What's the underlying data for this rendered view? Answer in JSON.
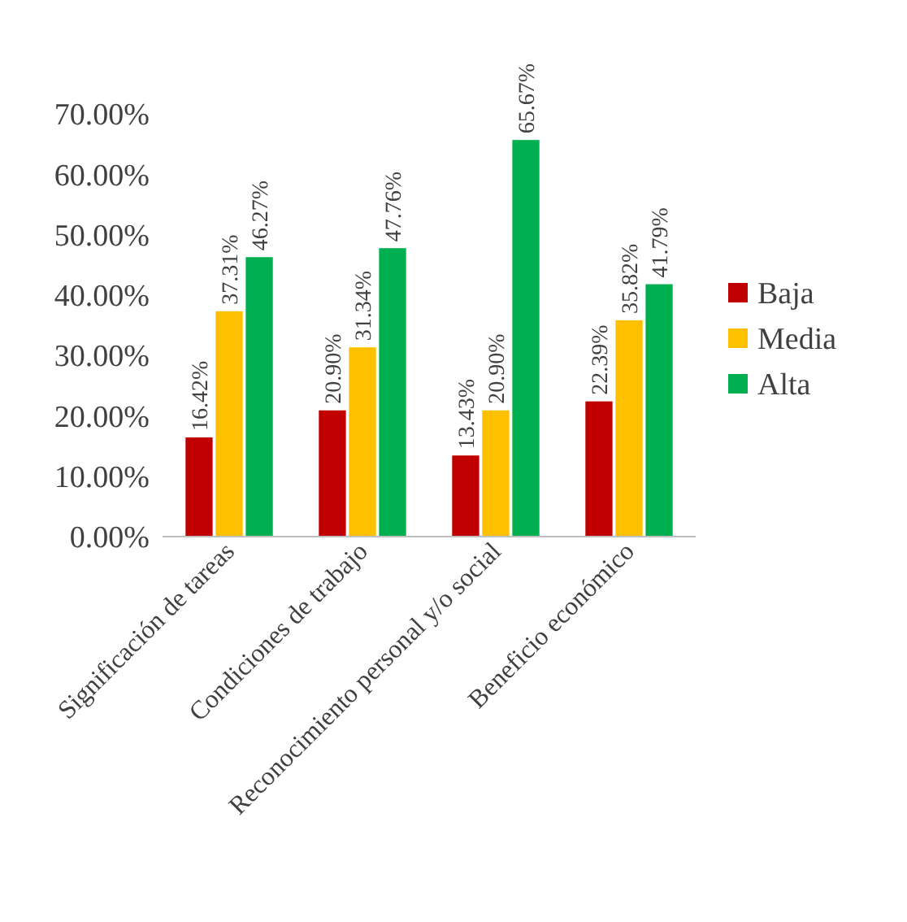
{
  "chart_data": {
    "type": "bar",
    "categories": [
      "Significación de tareas",
      "Condiciones de trabajo",
      "Reconocimiento personal y/o social",
      "Beneficio económico"
    ],
    "series": [
      {
        "name": "Baja",
        "color": "#c00000",
        "values": [
          16.42,
          20.9,
          13.43,
          22.39
        ],
        "value_labels": [
          "16.42%",
          "20.90%",
          "13.43%",
          "22.39%"
        ]
      },
      {
        "name": "Media",
        "color": "#ffc000",
        "values": [
          37.31,
          31.34,
          20.9,
          35.82
        ],
        "value_labels": [
          "37.31%",
          "31.34%",
          "20.90%",
          "35.82%"
        ]
      },
      {
        "name": "Alta",
        "color": "#00b050",
        "values": [
          46.27,
          47.76,
          65.67,
          41.79
        ],
        "value_labels": [
          "46.27%",
          "47.76%",
          "65.67%",
          "41.79%"
        ]
      }
    ],
    "ylim": [
      0,
      70
    ],
    "yticks": [
      {
        "value": 0,
        "label": "0.00%"
      },
      {
        "value": 10,
        "label": "10.00%"
      },
      {
        "value": 20,
        "label": "20.00%"
      },
      {
        "value": 30,
        "label": "30.00%"
      },
      {
        "value": 40,
        "label": "40.00%"
      },
      {
        "value": 50,
        "label": "50.00%"
      },
      {
        "value": 60,
        "label": "60.00%"
      },
      {
        "value": 70,
        "label": "70.00%"
      }
    ],
    "grid": false,
    "legend": "right"
  }
}
